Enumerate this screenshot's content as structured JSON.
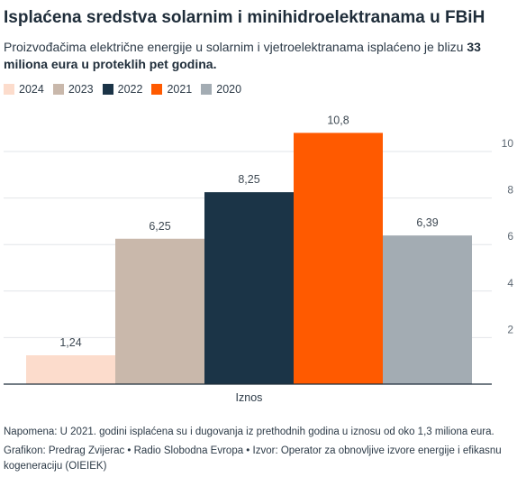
{
  "header": {
    "title": "Isplaćena sredstva solarnim i minihidroelektranama u FBiH",
    "subtitle_prefix": "Proizvođačima električne energije u solarnim i vjetroelektranama isplaćeno je blizu",
    "subtitle_bold": "33 miliona eura u proteklih pet godina."
  },
  "footer": {
    "note": "Napomena: U 2021. godini isplaćena su i dugovanja iz prethodnih godina u iznosu od oko 1,3 miliona eura.",
    "credits": "Grafikon: Predrag Zvijerac • Radio Slobodna Evropa • Izvor: Operator za obnovljive izvore energije i efikasnu kogeneraciju (OIEIEK)"
  },
  "chart_data": {
    "type": "bar",
    "categories": [
      "Iznos"
    ],
    "series": [
      {
        "name": "2024",
        "values": [
          1.24
        ],
        "label": "1,24",
        "color": "#fcdccc"
      },
      {
        "name": "2023",
        "values": [
          6.25
        ],
        "label": "6,25",
        "color": "#c9b8ab"
      },
      {
        "name": "2022",
        "values": [
          8.25
        ],
        "label": "8,25",
        "color": "#1b3447"
      },
      {
        "name": "2021",
        "values": [
          10.8
        ],
        "label": "10,8",
        "color": "#ff5a00"
      },
      {
        "name": "2020",
        "values": [
          6.39
        ],
        "label": "6,39",
        "color": "#a3acb3"
      }
    ],
    "yticks": [
      {
        "value": 2,
        "label": "2"
      },
      {
        "value": 4,
        "label": "4"
      },
      {
        "value": 6,
        "label": "6"
      },
      {
        "value": 8,
        "label": "8"
      },
      {
        "value": 10,
        "label": "10"
      }
    ],
    "ylim": [
      0,
      12
    ],
    "grid": true,
    "y_axis_position": "right",
    "legend_position": "top-left"
  }
}
